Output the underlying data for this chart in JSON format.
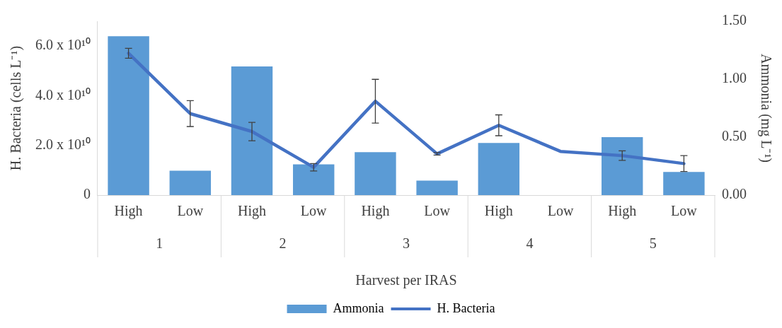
{
  "chart_data": {
    "type": "bar",
    "xlabel": "Harvest per IRAS",
    "ylabel": "H. Bacteria (cells L⁻¹)",
    "y2label": "Ammonia (mg L⁻¹)",
    "categories": [
      "High",
      "Low",
      "High",
      "Low",
      "High",
      "Low",
      "High",
      "Low",
      "High",
      "Low"
    ],
    "annotations": [
      "1",
      "2",
      "3",
      "4",
      "5"
    ],
    "series": [
      {
        "name": "Ammonia",
        "axis": "y2",
        "color": "#5b9bd5",
        "values": [
          1.37,
          0.21,
          1.11,
          0.265,
          0.37,
          0.125,
          0.45,
          0,
          0.5,
          0.2
        ]
      },
      {
        "name": "H. Bacteria",
        "type": "line",
        "color": "#4472c4",
        "values": [
          57100000000.0,
          32800000000.0,
          25600000000.0,
          11200000000.0,
          37800000000.0,
          16600000000.0,
          28100000000.0,
          17600000000.0,
          15900000000.0,
          12700000000.0
        ],
        "errors": [
          2000000000.0,
          5200000000.0,
          3700000000.0,
          1500000000.0,
          8800000000.0,
          500000000.0,
          4200000000.0,
          null,
          1900000000.0,
          3200000000.0
        ]
      }
    ],
    "ylim": [
      0,
      70000000000.0
    ],
    "yticks": [
      0,
      {
        "value": 20000000000.0,
        "label": "2.0 x 10¹⁰"
      },
      {
        "value": 40000000000.0,
        "label": "4.0 x 10¹⁰"
      },
      {
        "value": 60000000000.0,
        "label": "6.0 x 10¹⁰"
      }
    ],
    "y2lim": [
      0,
      1.5
    ],
    "y2ticks": [
      {
        "value": 0,
        "label": "0.00"
      },
      {
        "value": 0.5,
        "label": "0.50"
      },
      {
        "value": 1,
        "label": "1.00"
      },
      {
        "value": 1.5,
        "label": "1.50"
      }
    ],
    "grid": false,
    "legend": "bottom",
    "marker": "none",
    "line_style": "solid"
  }
}
